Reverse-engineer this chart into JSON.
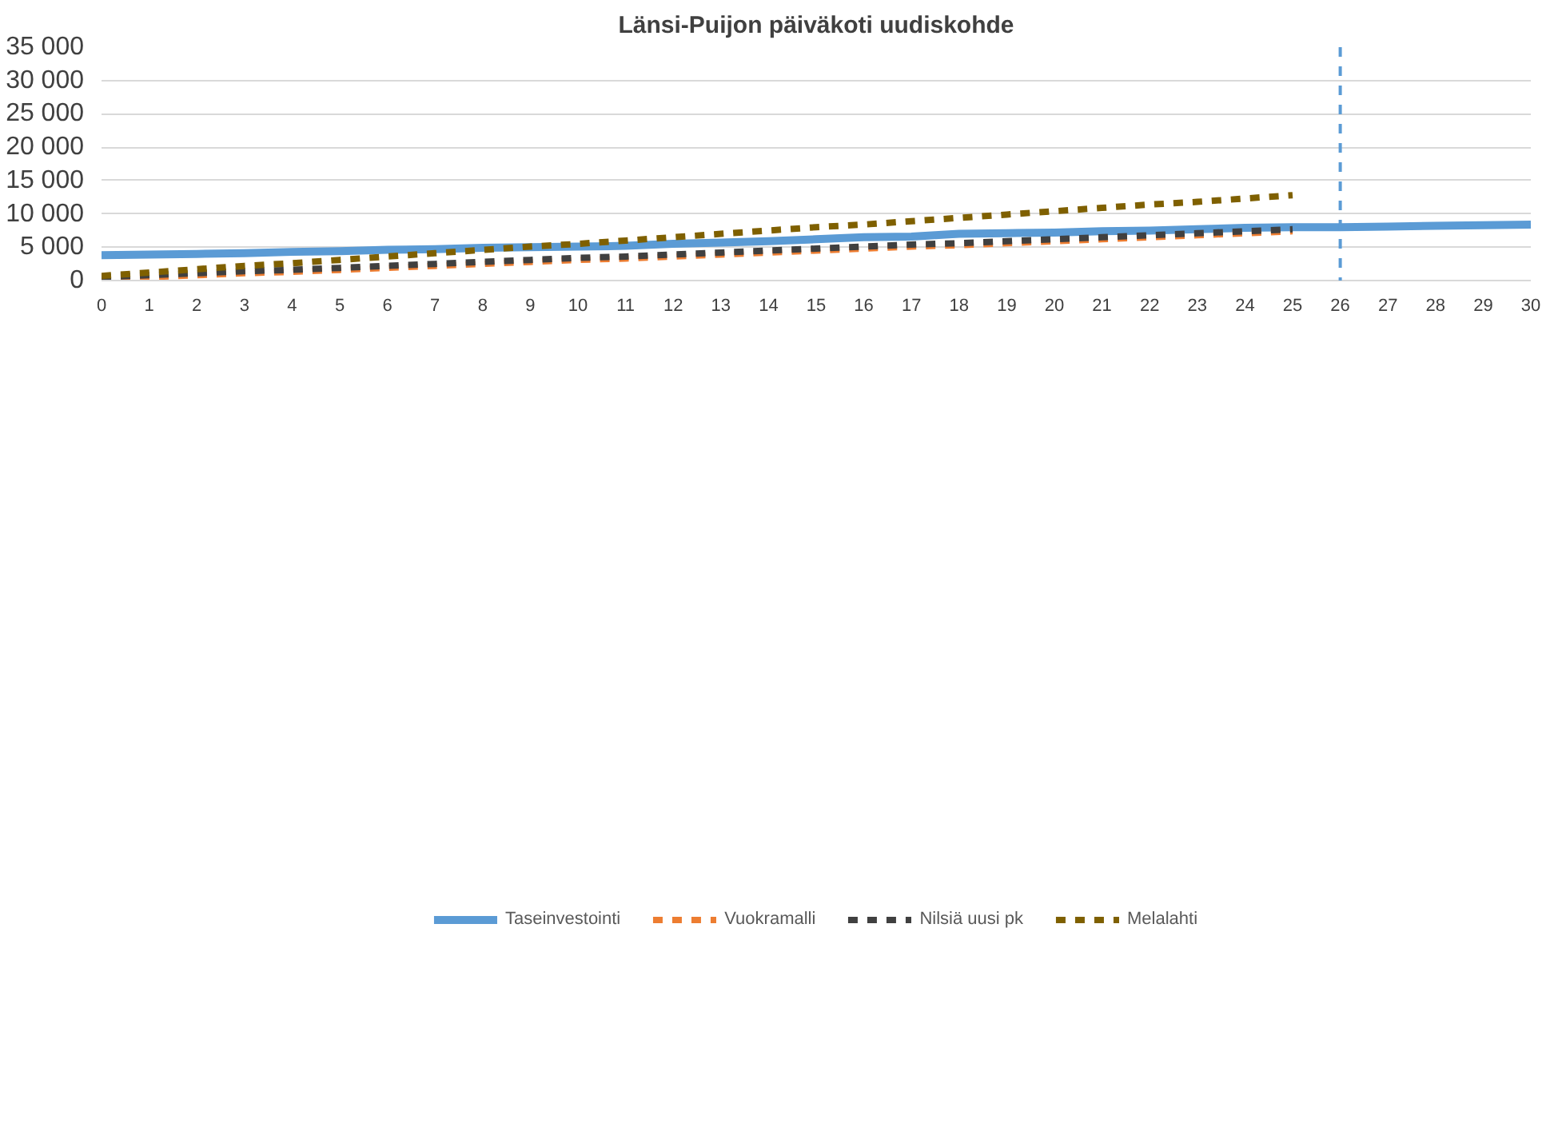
{
  "chart_data": {
    "type": "line",
    "title": "Länsi-Puijon päiväkoti uudiskohde",
    "x": [
      0,
      1,
      2,
      3,
      4,
      5,
      6,
      7,
      8,
      9,
      10,
      11,
      12,
      13,
      14,
      15,
      16,
      17,
      18,
      19,
      20,
      21,
      22,
      23,
      24,
      25,
      26,
      27,
      28,
      29,
      30
    ],
    "xlim": [
      0,
      30
    ],
    "xticks": [
      0,
      1,
      2,
      3,
      4,
      5,
      6,
      7,
      8,
      9,
      10,
      11,
      12,
      13,
      14,
      15,
      16,
      17,
      18,
      19,
      20,
      21,
      22,
      23,
      24,
      25,
      26,
      27,
      28,
      29,
      30
    ],
    "ylim": [
      0,
      35000
    ],
    "yticks": [
      0,
      {
        "value": 5000,
        "label": "5 000"
      },
      {
        "value": 10000,
        "label": "10 000"
      },
      {
        "value": 15000,
        "label": "15 000"
      },
      {
        "value": 20000,
        "label": "20 000"
      },
      {
        "value": 25000,
        "label": "25 000"
      },
      {
        "value": 30000,
        "label": "30 000"
      },
      {
        "value": 35000,
        "label": "35 000"
      }
    ],
    "grid": "y",
    "legend": "bottom",
    "marker": "none",
    "series": [
      {
        "name": "Taseinvestointi",
        "color": "#5b9bd5",
        "line_style": "solid",
        "values": [
          3800,
          3900,
          4000,
          4100,
          4300,
          4400,
          4600,
          4700,
          4900,
          5000,
          5100,
          5200,
          5500,
          5700,
          5900,
          6200,
          6500,
          6600,
          7000,
          7100,
          7200,
          7400,
          7500,
          7700,
          7900,
          8000,
          8000,
          8100,
          8200,
          8300,
          8400
        ]
      },
      {
        "name": "Vuokramalli",
        "color": "#ed7d31",
        "line_style": "dashed",
        "values": [
          200,
          500,
          800,
          1100,
          1300,
          1600,
          1900,
          2200,
          2500,
          2800,
          3100,
          3300,
          3600,
          3900,
          4200,
          4500,
          4800,
          5100,
          5300,
          5600,
          5900,
          6200,
          6500,
          6800,
          7100,
          7400,
          null,
          null,
          null,
          null,
          null
        ]
      },
      {
        "name": "Nilsiä uusi pk",
        "color": "#404040",
        "line_style": "dashed",
        "values": [
          500,
          800,
          1100,
          1400,
          1600,
          1900,
          2200,
          2500,
          2800,
          3100,
          3400,
          3600,
          3900,
          4200,
          4500,
          4800,
          5100,
          5400,
          5600,
          5900,
          6200,
          6500,
          6800,
          7100,
          7400,
          7700,
          null,
          null,
          null,
          null,
          null
        ]
      },
      {
        "name": "Melalahti",
        "color": "#7f6000",
        "line_style": "dashed",
        "values": [
          700,
          1200,
          1700,
          2200,
          2600,
          3100,
          3600,
          4100,
          4600,
          5100,
          5500,
          6000,
          6500,
          7000,
          7500,
          8000,
          8400,
          8900,
          9400,
          9900,
          10400,
          10900,
          11400,
          11800,
          12300,
          12800,
          null,
          null,
          null,
          null,
          null
        ]
      }
    ],
    "ref_lines": [
      {
        "axis": "x",
        "value": 26,
        "color": "#5b9bd5",
        "line_style": "dashed"
      }
    ]
  }
}
